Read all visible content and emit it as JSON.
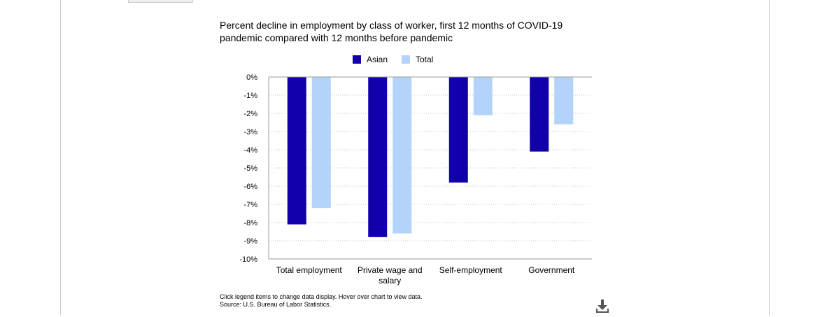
{
  "chart_data": {
    "type": "bar",
    "title": "Percent decline in employment by class of worker, first 12 months of COVID-19 pandemic compared with 12 months before pandemic",
    "categories": [
      "Total employment",
      "Private wage and salary",
      "Self-employment",
      "Government"
    ],
    "category_lines": [
      [
        "Total employment"
      ],
      [
        "Private wage and",
        "salary"
      ],
      [
        "Self-employment"
      ],
      [
        "Government"
      ]
    ],
    "series": [
      {
        "name": "Asian",
        "color": "#1100aa",
        "values": [
          -8.1,
          -8.8,
          -5.8,
          -4.1
        ]
      },
      {
        "name": "Total",
        "color": "#b3d3fb",
        "values": [
          -7.2,
          -8.6,
          -2.1,
          -2.6
        ]
      }
    ],
    "ylim": [
      -10,
      0
    ],
    "yticks": [
      0,
      -1,
      -2,
      -3,
      -4,
      -5,
      -6,
      -7,
      -8,
      -9,
      -10
    ],
    "ytick_labels": [
      "0%",
      "-1%",
      "-2%",
      "-3%",
      "-4%",
      "-5%",
      "-6%",
      "-7%",
      "-8%",
      "-9%",
      "-10%"
    ],
    "grid": true,
    "legend_position": "top-center"
  },
  "footnote": {
    "line1": "Click legend items to change data display. Hover over chart to view data.",
    "line2": "Source: U.S. Bureau of Labor Statistics."
  },
  "icons": {
    "download": "download-icon"
  }
}
